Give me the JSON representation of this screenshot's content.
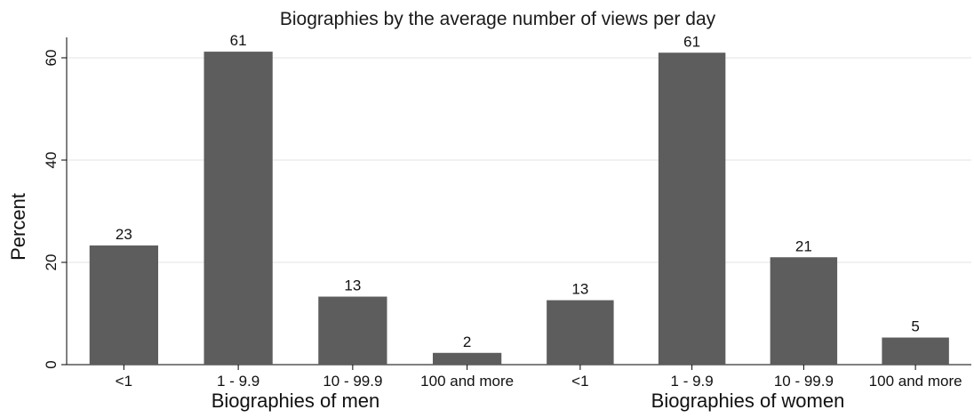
{
  "chart_data": {
    "type": "bar",
    "title": "Biographies by the average number of views per day",
    "ylabel": "Percent",
    "ylim": [
      0,
      64
    ],
    "yticks": [
      0,
      20,
      40,
      60
    ],
    "grid": true,
    "bar_color": "#5d5d5d",
    "panels": [
      {
        "xlabel": "Biographies of men",
        "categories": [
          "<1",
          "1 - 9.9",
          "10 - 99.9",
          "100 and more"
        ],
        "values": [
          23.3,
          61.2,
          13.3,
          2.3
        ],
        "labels": [
          "23",
          "61",
          "13",
          "2"
        ]
      },
      {
        "xlabel": "Biographies of women",
        "categories": [
          "<1",
          "1 - 9.9",
          "10 - 99.9",
          "100 and more"
        ],
        "values": [
          12.6,
          61.0,
          21.0,
          5.3
        ],
        "labels": [
          "13",
          "61",
          "21",
          "5"
        ]
      }
    ]
  }
}
